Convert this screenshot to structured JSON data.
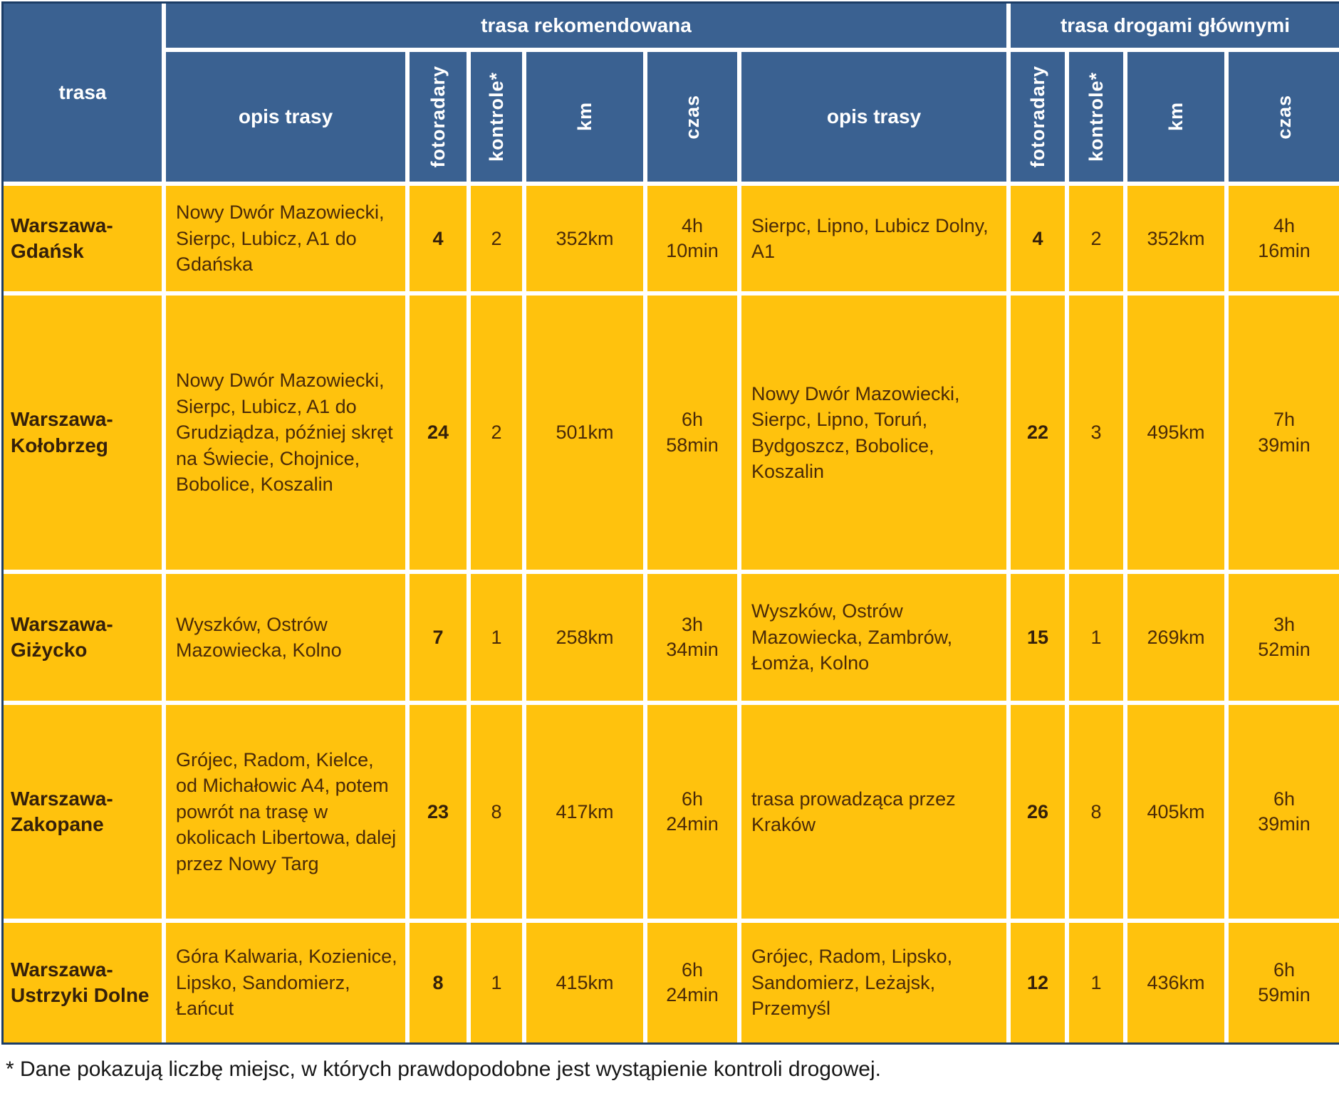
{
  "chart_data": {
    "type": "table",
    "corner_header": "trasa",
    "group_headers": [
      "trasa rekomendowana",
      "trasa drogami głównymi"
    ],
    "columns": [
      "opis trasy",
      "fotoradary",
      "kontrole*",
      "km",
      "czas",
      "opis trasy",
      "fotoradary",
      "kontrole*",
      "km",
      "czas"
    ],
    "rows": [
      {
        "route": "Warszawa-Gdańsk",
        "rec": {
          "opis": "Nowy Dwór Mazowiecki, Sierpc, Lubicz, A1 do Gdańska",
          "fotoradary": "4",
          "kontrole": "2",
          "km": "352km",
          "czas": "4h\n10min"
        },
        "main": {
          "opis": "Sierpc, Lipno, Lubicz Dolny, A1",
          "fotoradary": "4",
          "kontrole": "2",
          "km": "352km",
          "czas": "4h\n16min"
        }
      },
      {
        "route": "Warszawa-Kołobrzeg",
        "rec": {
          "opis": "Nowy Dwór Mazowiecki, Sierpc, Lubicz, A1 do Grudziądza, później skręt na Świecie, Chojnice, Bobolice, Koszalin",
          "fotoradary": "24",
          "kontrole": "2",
          "km": "501km",
          "czas": "6h\n58min"
        },
        "main": {
          "opis": "Nowy Dwór Mazowiecki, Sierpc, Lipno, Toruń, Bydgoszcz, Bobolice, Koszalin",
          "fotoradary": "22",
          "kontrole": "3",
          "km": "495km",
          "czas": "7h\n39min"
        }
      },
      {
        "route": "Warszawa-Giżycko",
        "rec": {
          "opis": "Wyszków, Ostrów Mazowiecka, Kolno",
          "fotoradary": "7",
          "kontrole": "1",
          "km": "258km",
          "czas": "3h\n34min"
        },
        "main": {
          "opis": "Wyszków, Ostrów Mazowiecka, Zambrów, Łomża, Kolno",
          "fotoradary": "15",
          "kontrole": "1",
          "km": "269km",
          "czas": "3h\n52min"
        }
      },
      {
        "route": "Warszawa-Zakopane",
        "rec": {
          "opis": "Grójec, Radom, Kielce, od Michałowic A4, potem powrót na trasę w okolicach Libertowa, dalej przez Nowy Targ",
          "fotoradary": "23",
          "kontrole": "8",
          "km": "417km",
          "czas": "6h\n24min"
        },
        "main": {
          "opis": "trasa prowadząca przez Kraków",
          "fotoradary": "26",
          "kontrole": "8",
          "km": "405km",
          "czas": "6h\n39min"
        }
      },
      {
        "route": "Warszawa-Ustrzyki Dolne",
        "rec": {
          "opis": "Góra Kalwaria, Kozienice, Lipsko, Sandomierz, Łańcut",
          "fotoradary": "8",
          "kontrole": "1",
          "km": "415km",
          "czas": "6h\n24min"
        },
        "main": {
          "opis": "Grójec, Radom, Lipsko, Sandomierz, Leżajsk, Przemyśl",
          "fotoradary": "12",
          "kontrole": "1",
          "km": "436km",
          "czas": "6h\n59min"
        }
      }
    ],
    "footnote": "* Dane pokazują liczbę miejsc, w których prawdopodobne jest wystąpienie kontroli drogowej."
  },
  "colors": {
    "header_bg": "#3a6191",
    "cell_bg": "#ffc20d",
    "grid": "#ffffff",
    "border": "#1c3d66",
    "header_text": "#ffffff",
    "cell_text": "#4a2a08"
  }
}
